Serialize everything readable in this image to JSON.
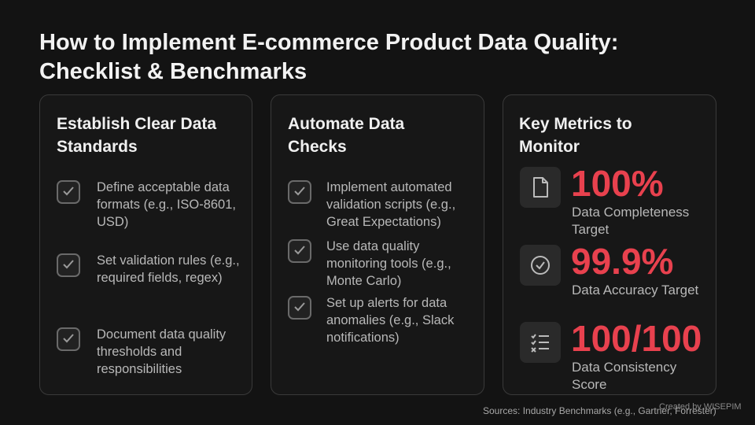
{
  "header": {
    "title": "How to Implement E-commerce Product Data Quality: Checklist & Benchmarks"
  },
  "columns": [
    {
      "heading": "Establish Clear Data Standards",
      "items": [
        "Define acceptable data formats (e.g., ISO-8601, USD)",
        "Set validation rules (e.g., required fields, regex)",
        "Document data quality thresholds and responsibilities"
      ]
    },
    {
      "heading": "Automate Data Checks",
      "items": [
        "Implement automated validation scripts (e.g., Great Expectations)",
        "Use data quality monitoring tools (e.g., Monte Carlo)",
        "Set up alerts for data anomalies (e.g., Slack notifications)"
      ]
    }
  ],
  "metrics": {
    "heading": "Key Metrics to Monitor",
    "items": [
      {
        "value": "100%",
        "label": "Data Completeness Target"
      },
      {
        "value": "99.9%",
        "label": "Data Accuracy Target"
      },
      {
        "value": "100/100",
        "label": "Data Consistency Score"
      }
    ]
  },
  "footer": {
    "sources": "Sources: Industry Benchmarks (e.g., Gartner, Forrester)",
    "credit": "Created by WISEPIM"
  }
}
